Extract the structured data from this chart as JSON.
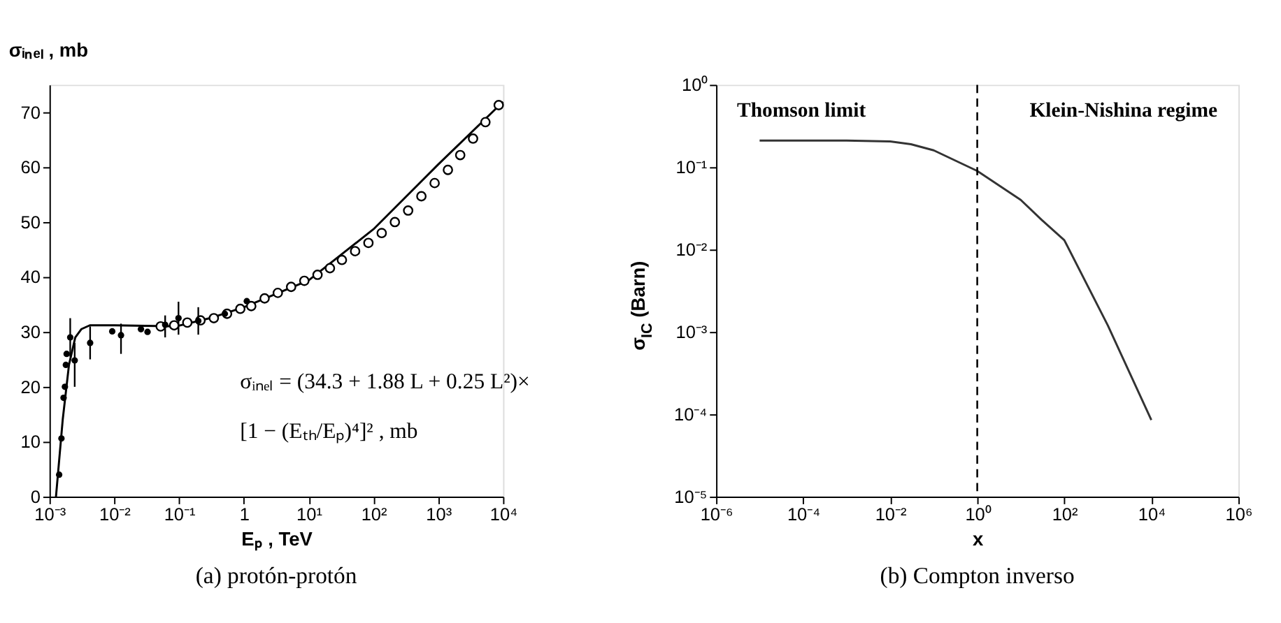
{
  "chart_data": [
    {
      "type": "line",
      "title": "(a) protón-protón",
      "xlabel": "Eₚ , TeV",
      "ylabel": "σᵢₙₑₗ , mb",
      "log": "x",
      "grid": false,
      "xlim": [
        0.001,
        10000
      ],
      "ylim": [
        0,
        75
      ],
      "xticks": [
        {
          "value": 0.001,
          "label": "10⁻³"
        },
        {
          "value": 0.01,
          "label": "10⁻²"
        },
        {
          "value": 0.1,
          "label": "10⁻¹"
        },
        {
          "value": 1,
          "label": "1"
        },
        {
          "value": 10,
          "label": "10¹"
        },
        {
          "value": 100,
          "label": "10²"
        },
        {
          "value": 1000,
          "label": "10³"
        },
        {
          "value": 10000,
          "label": "10⁴"
        }
      ],
      "yticks": [
        0,
        10,
        20,
        30,
        40,
        50,
        60,
        70
      ],
      "annotations": [
        "σᵢₙₑₗ = (34.3 + 1.88 L + 0.25 L²)×",
        "[1 − (Eₜₕ/Eₚ)⁴]² , mb"
      ],
      "series": [
        {
          "color": "#000000",
          "x": [
            0.00126,
            0.0016,
            0.002,
            0.0025,
            0.0031,
            0.0042,
            0.01,
            0.03,
            0.09,
            0.3,
            1,
            10,
            100,
            1000,
            10000
          ],
          "values": [
            0,
            14,
            24,
            29,
            30.5,
            31.2,
            31.2,
            31.1,
            31.0,
            32.5,
            34.5,
            39.4,
            48.7,
            60.5,
            71.9
          ]
        },
        {
          "type": "scatter",
          "marker": "circle",
          "color": "#000000",
          "x": [
            0.052,
            0.084,
            0.134,
            0.214,
            0.344,
            0.55,
            0.88,
            1.3,
            2.09,
            3.34,
            5.36,
            8.57,
            13.7,
            21.3,
            32.6,
            52.1,
            83.6,
            134,
            214,
            343,
            549,
            879,
            1409,
            2183,
            3443,
            5346,
            8570
          ],
          "values": [
            31.0,
            31.2,
            31.7,
            32.1,
            32.5,
            33.3,
            34.2,
            34.7,
            36.1,
            37.1,
            38.2,
            39.3,
            40.4,
            41.6,
            43.1,
            44.7,
            46.2,
            48.0,
            50.0,
            52.1,
            54.7,
            57.1,
            59.5,
            62.2,
            65.2,
            68.2,
            71.3
          ]
        },
        {
          "type": "scatter",
          "marker": "circle",
          "color": "#000000",
          "x": [
            0.00141,
            0.00153,
            0.00165,
            0.00173,
            0.00179,
            0.00184,
            0.00209,
            0.00245,
            0.00424,
            0.0093,
            0.0127,
            0.0258,
            0.0326,
            0.061,
            0.098,
            0.198,
            0.508,
            1.11
          ],
          "values": [
            4,
            10.6,
            18,
            20,
            24,
            26,
            29,
            24.8,
            28,
            30.1,
            29.4,
            30.5,
            30,
            31.3,
            32.5,
            32,
            33.3,
            35.6
          ],
          "errors": [
            null,
            null,
            null,
            null,
            null,
            null,
            [
              25.5,
              32.5
            ],
            [
              20,
              28
            ],
            [
              25,
              31
            ],
            null,
            [
              26,
              31.5
            ],
            null,
            null,
            [
              29,
              33
            ],
            [
              29.5,
              35.5
            ],
            [
              29.5,
              34.5
            ],
            null,
            null
          ]
        }
      ]
    },
    {
      "type": "line",
      "title": "(b) Compton inverso",
      "xlabel": "x",
      "ylabel": "σ$_{IC}$ (Barn)",
      "log": "xy",
      "grid": false,
      "xlim": [
        1e-06,
        1000000
      ],
      "ylim": [
        1e-05,
        1
      ],
      "xticks": [
        {
          "value": 1e-06,
          "label": "10⁻⁶"
        },
        {
          "value": 0.0001,
          "label": "10⁻⁴"
        },
        {
          "value": 0.01,
          "label": "10⁻²"
        },
        {
          "value": 1,
          "label": "10⁰"
        },
        {
          "value": 100,
          "label": "10²"
        },
        {
          "value": 10000,
          "label": "10⁴"
        },
        {
          "value": 1000000,
          "label": "10⁶"
        }
      ],
      "yticks": [
        {
          "value": 1e-05,
          "label": "10⁻⁵"
        },
        {
          "value": 0.0001,
          "label": "10⁻⁴"
        },
        {
          "value": 0.001,
          "label": "10⁻³"
        },
        {
          "value": 0.01,
          "label": "10⁻²"
        },
        {
          "value": 0.1,
          "label": "10⁻¹"
        },
        {
          "value": 1,
          "label": "10⁰"
        }
      ],
      "annotations": [
        "Thomson limit",
        "Klein-Nishina regime"
      ],
      "ref_lines": [
        {
          "axis": "x",
          "value": 1,
          "line_style": "dashed",
          "color": "#000000"
        }
      ],
      "series": [
        {
          "color": "#333333",
          "x": [
            1e-05,
            0.001,
            0.01,
            0.03,
            0.1,
            1,
            10,
            30,
            100,
            1000,
            10000
          ],
          "values": [
            0.21,
            0.21,
            0.205,
            0.19,
            0.16,
            0.09,
            0.04,
            0.023,
            0.013,
            0.0012,
            8.5e-05
          ]
        }
      ]
    }
  ]
}
